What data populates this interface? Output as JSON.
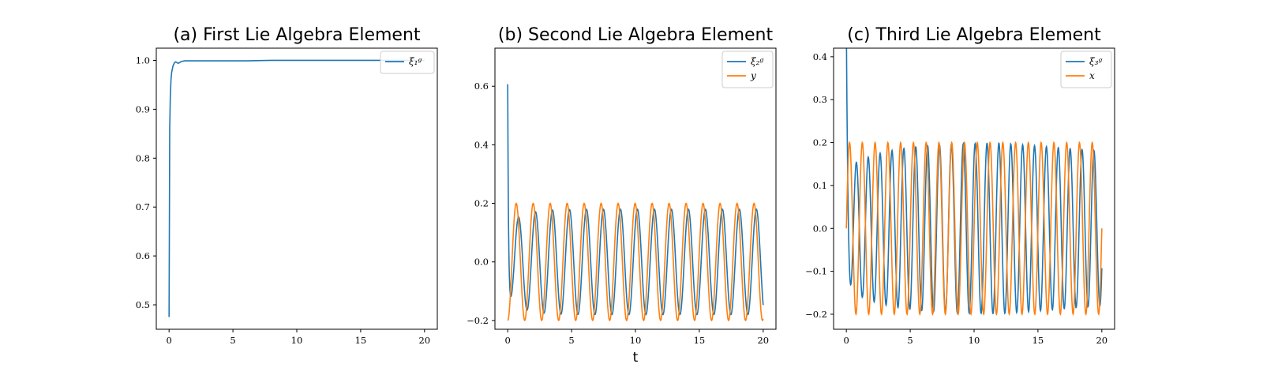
{
  "chart_data": [
    {
      "type": "line",
      "title": "(a) First Lie Algebra Element",
      "xlabel": "",
      "xlim": [
        -1,
        21
      ],
      "ylim": [
        0.45,
        1.025
      ],
      "xticks": [
        0,
        5,
        10,
        15,
        20
      ],
      "xtick_labels": [
        "0",
        "5",
        "10",
        "15",
        "20"
      ],
      "yticks": [
        0.5,
        0.6,
        0.7,
        0.8,
        0.9,
        1.0
      ],
      "ytick_labels": [
        "0.5",
        "0.6",
        "0.7",
        "0.8",
        "0.9",
        "1.0"
      ],
      "legend_position": "top-right",
      "grid": false,
      "series": [
        {
          "name": "ξ₁ᵍ",
          "color": "#1f77b4",
          "x": [
            0,
            0.05,
            0.1,
            0.15,
            0.2,
            0.3,
            0.4,
            0.5,
            0.6,
            0.7,
            0.8,
            0.9,
            1.0,
            1.2,
            1.5,
            2,
            3,
            4,
            5,
            6,
            8,
            10,
            12,
            14,
            16,
            18,
            20
          ],
          "y": [
            0.475,
            0.86,
            0.93,
            0.96,
            0.975,
            0.988,
            0.994,
            0.997,
            0.996,
            0.994,
            0.995,
            0.997,
            0.998,
            0.999,
            0.999,
            0.999,
            0.999,
            0.999,
            0.999,
            0.999,
            1.0,
            1.0,
            1.0,
            1.0,
            1.0,
            1.0,
            1.0
          ]
        }
      ]
    },
    {
      "type": "line",
      "title": "(b) Second Lie Algebra Element",
      "xlabel": "t",
      "xlim": [
        -1,
        21
      ],
      "ylim": [
        -0.23,
        0.73
      ],
      "xticks": [
        0,
        5,
        10,
        15,
        20
      ],
      "xtick_labels": [
        "0",
        "5",
        "10",
        "15",
        "20"
      ],
      "yticks": [
        -0.2,
        0.0,
        0.2,
        0.4,
        0.6
      ],
      "ytick_labels": [
        "−0.2",
        "0.0",
        "0.2",
        "0.4",
        "0.6"
      ],
      "legend_position": "top-right",
      "grid": false,
      "series": [
        {
          "name": "ξ₂ᵍ",
          "color": "#1f77b4",
          "function": "damped_sine_shape",
          "x_range": [
            0,
            20
          ],
          "y_start": 0.69,
          "amplitude": 0.18,
          "period": 1.33,
          "phase_offset": 0.18
        },
        {
          "name": "y",
          "color": "#ff7f0e",
          "function": "negative_cosine",
          "x_range": [
            0,
            20
          ],
          "amplitude": 0.2,
          "period": 1.33
        }
      ]
    },
    {
      "type": "line",
      "title": "(c) Third Lie Algebra Element",
      "xlabel": "",
      "xlim": [
        -1,
        21
      ],
      "ylim": [
        -0.235,
        0.42
      ],
      "xticks": [
        0,
        5,
        10,
        15,
        20
      ],
      "xtick_labels": [
        "0",
        "5",
        "10",
        "15",
        "20"
      ],
      "yticks": [
        -0.2,
        -0.1,
        0.0,
        0.1,
        0.2,
        0.3,
        0.4
      ],
      "ytick_labels": [
        "−0.2",
        "−0.1",
        "0.0",
        "0.1",
        "0.2",
        "0.3",
        "0.4"
      ],
      "legend_position": "top-right",
      "grid": false,
      "series": [
        {
          "name": "ξ₃ᵍ",
          "color": "#1f77b4",
          "function": "decaying_start_sine",
          "x_range": [
            0,
            20
          ],
          "y_start": 0.4,
          "amplitude_min": 0.14,
          "amplitude_max": 0.2,
          "period": 0.93
        },
        {
          "name": "x",
          "color": "#ff7f0e",
          "function": "sine",
          "x_range": [
            0,
            20
          ],
          "amplitude": 0.2,
          "period": 1.0
        }
      ]
    }
  ]
}
